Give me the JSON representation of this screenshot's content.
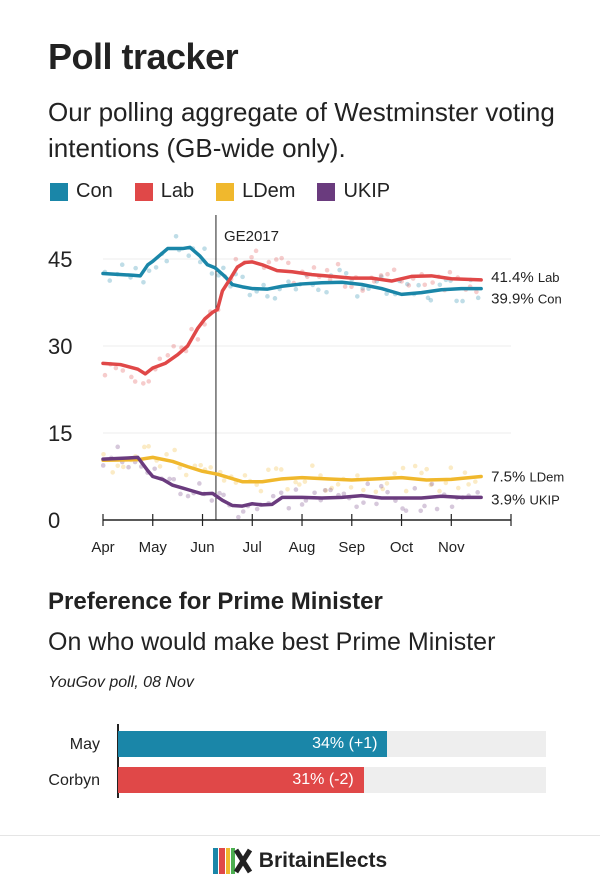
{
  "title": "Poll tracker",
  "subtitle": "Our polling aggregate of Westminster voting intentions (GB-wide only).",
  "colors": {
    "con": "#1a86a8",
    "lab": "#e04848",
    "ldem": "#f0b82d",
    "ukip": "#6a3b7e"
  },
  "chart_data": {
    "type": "line",
    "title": "Poll tracker",
    "x_unit": "month index (0 = start of Apr, 1 = start of May, ... 7 = start of Nov)",
    "xticks": [
      0,
      1,
      2,
      3,
      4,
      5,
      6,
      7
    ],
    "xtick_labels": [
      "Apr",
      "May",
      "Jun",
      "Jul",
      "Aug",
      "Sep",
      "Oct",
      "Nov"
    ],
    "xlim": [
      0,
      8.2
    ],
    "ylim": [
      0,
      50
    ],
    "yticks": [
      0,
      15,
      30,
      45
    ],
    "grid": true,
    "legend": "top",
    "annotation": {
      "label": "GE2017",
      "x": 2.27
    },
    "series": [
      {
        "name": "Con",
        "color": "#1a86a8",
        "end_label": "39.9%",
        "end_abbr": "Con",
        "x": [
          0,
          0.6,
          0.75,
          0.9,
          1.0,
          1.3,
          1.6,
          1.75,
          1.95,
          2.1,
          2.25,
          2.45,
          2.6,
          2.8,
          3.0,
          3.3,
          3.6,
          4.0,
          4.4,
          4.8,
          5.2,
          5.6,
          6.0,
          6.4,
          6.8,
          7.2,
          7.6
        ],
        "y": [
          42.5,
          42.2,
          42.1,
          44.0,
          44.6,
          46.8,
          46.8,
          47.0,
          45.5,
          44.0,
          43.5,
          42.0,
          40.6,
          40.2,
          39.9,
          39.8,
          40.3,
          40.7,
          40.9,
          41.0,
          40.6,
          39.9,
          38.9,
          39.2,
          39.7,
          39.9,
          39.9
        ]
      },
      {
        "name": "Lab",
        "color": "#e04848",
        "end_label": "41.4%",
        "end_abbr": "Lab",
        "x": [
          0,
          0.35,
          0.7,
          0.85,
          1.0,
          1.25,
          1.5,
          1.7,
          1.9,
          2.05,
          2.2,
          2.3,
          2.4,
          2.55,
          2.7,
          2.85,
          3.0,
          3.2,
          3.5,
          3.8,
          4.2,
          4.6,
          5.0,
          5.4,
          5.8,
          6.2,
          6.6,
          7.0,
          7.6
        ],
        "y": [
          27.0,
          26.8,
          26.0,
          25.2,
          26.2,
          27.0,
          28.5,
          30.0,
          33.0,
          34.7,
          35.8,
          36.3,
          39.5,
          41.5,
          43.6,
          44.4,
          44.5,
          44.0,
          43.0,
          42.8,
          42.3,
          42.0,
          41.7,
          41.7,
          41.2,
          42.0,
          42.1,
          41.6,
          41.4
        ]
      },
      {
        "name": "LDem",
        "color": "#f0b82d",
        "end_label": "7.5%",
        "end_abbr": "LDem",
        "x": [
          0,
          0.7,
          1.0,
          1.4,
          1.7,
          2.0,
          2.3,
          2.8,
          3.2,
          3.6,
          4.0,
          4.5,
          5.0,
          5.5,
          6.0,
          6.5,
          7.0,
          7.6
        ],
        "y": [
          10.3,
          10.4,
          10.8,
          10.1,
          9.2,
          8.4,
          7.9,
          6.6,
          6.6,
          7.1,
          7.3,
          7.1,
          6.9,
          7.1,
          7.3,
          6.9,
          7.0,
          7.5
        ]
      },
      {
        "name": "UKIP",
        "color": "#6a3b7e",
        "end_label": "3.9%",
        "end_abbr": "UKIP",
        "x": [
          0,
          0.5,
          0.7,
          0.9,
          1.0,
          1.2,
          1.4,
          1.6,
          1.8,
          2.0,
          2.2,
          2.4,
          2.6,
          2.8,
          3.0,
          3.2,
          3.4,
          3.6,
          4.0,
          4.4,
          4.8,
          5.2,
          5.6,
          6.0,
          6.4,
          6.8,
          7.2,
          7.6
        ],
        "y": [
          10.5,
          10.7,
          10.8,
          8.5,
          7.5,
          7.0,
          6.0,
          5.5,
          5.0,
          4.5,
          4.6,
          3.4,
          2.5,
          2.4,
          2.8,
          2.6,
          2.7,
          3.9,
          3.9,
          3.8,
          3.9,
          4.2,
          3.8,
          3.8,
          3.8,
          4.1,
          3.9,
          3.9
        ]
      }
    ]
  },
  "pm": {
    "title": "Preference for Prime Minister",
    "subtitle": "On who would make best Prime Minister",
    "source": "YouGov poll, 08 Nov",
    "bars": [
      {
        "name": "May",
        "value": 34,
        "label": "34% (+1)",
        "color": "#1a86a8"
      },
      {
        "name": "Corbyn",
        "value": 31,
        "label": "31% (-2)",
        "color": "#e04848"
      }
    ],
    "scale_max": 54
  },
  "footer": {
    "brand": "BritainElects"
  }
}
